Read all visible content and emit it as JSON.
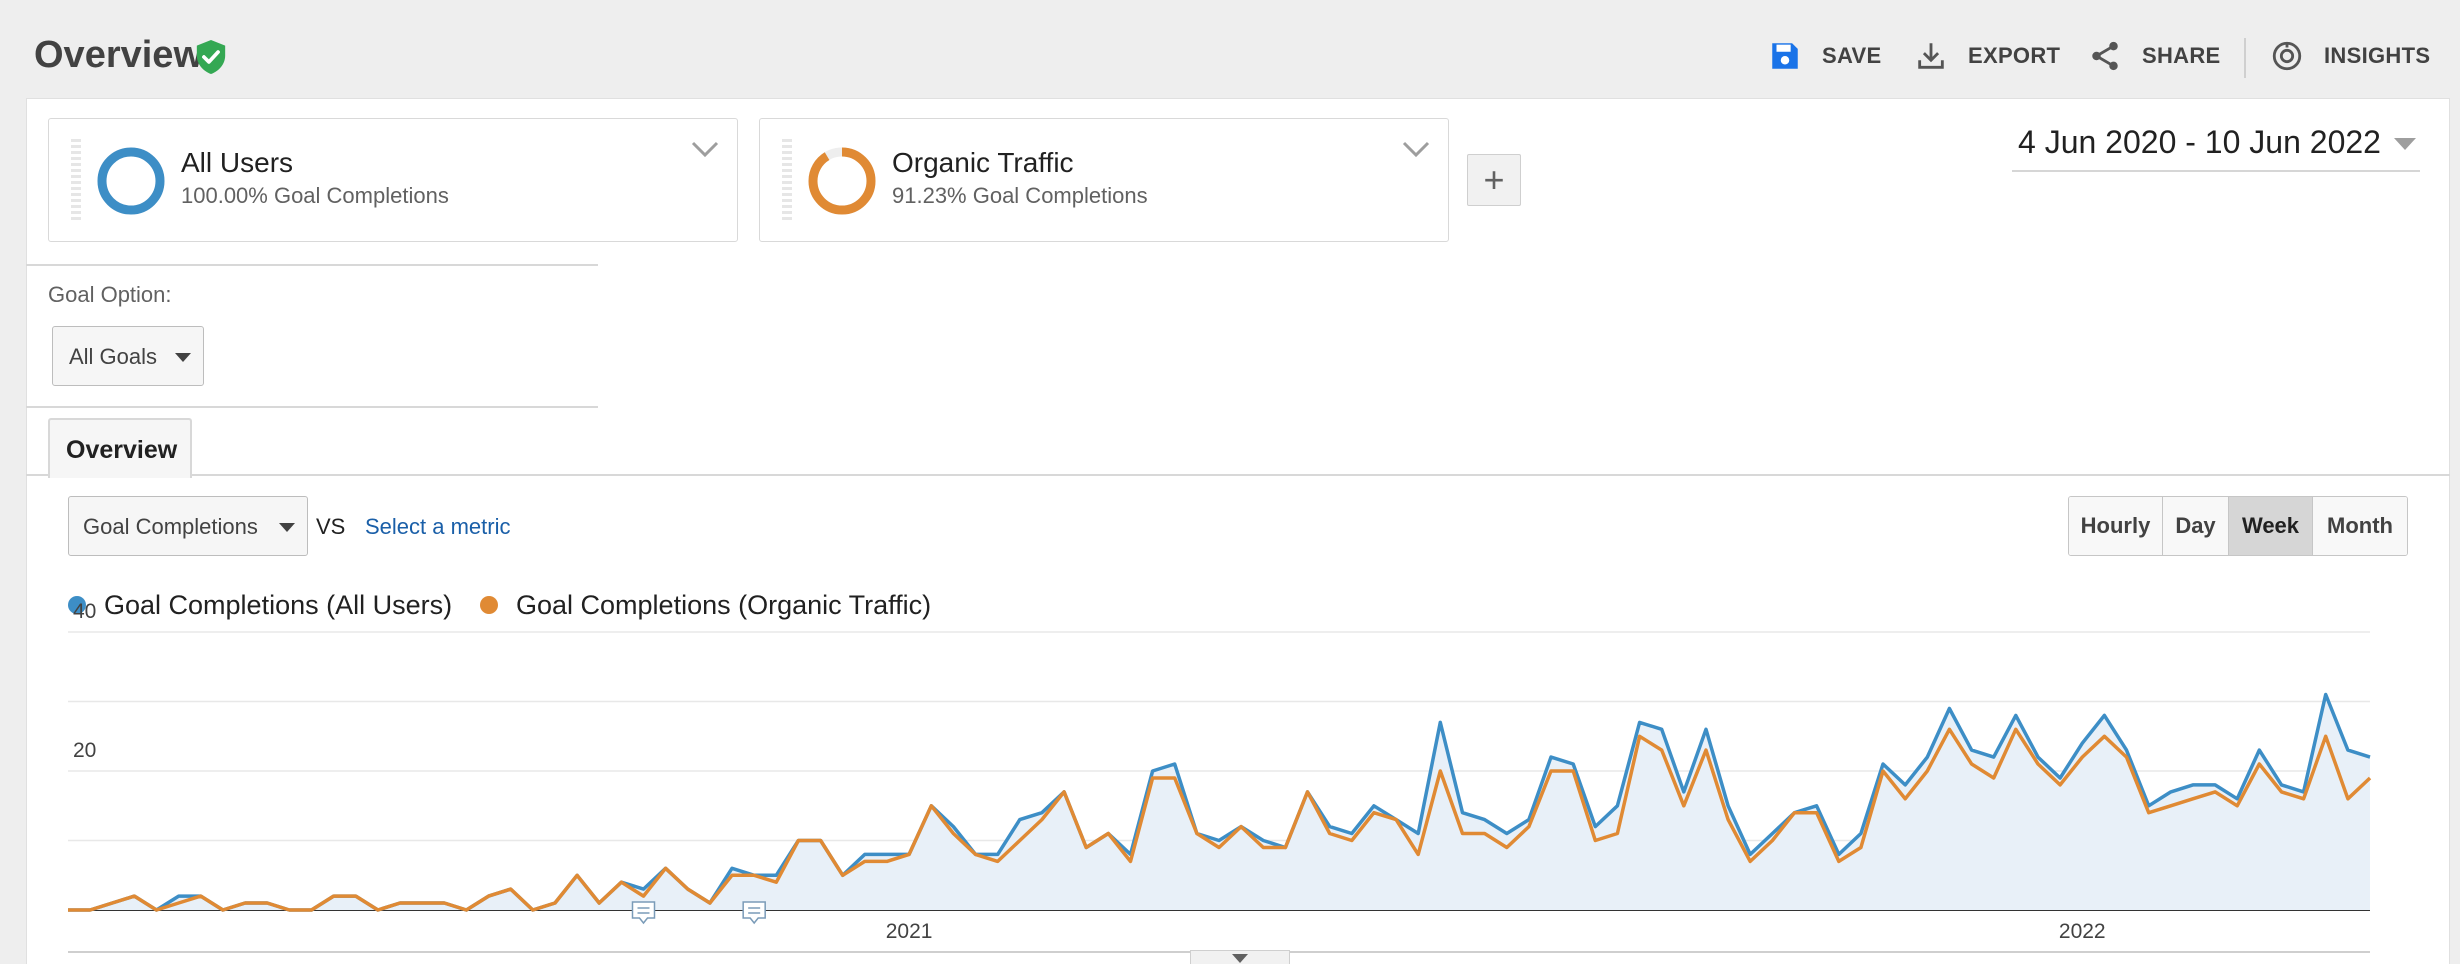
{
  "header": {
    "title": "Overview",
    "actions": {
      "save": "SAVE",
      "export": "EXPORT",
      "share": "SHARE",
      "insights": "INSIGHTS"
    }
  },
  "segments": [
    {
      "name": "All Users",
      "subtitle": "100.00% Goal Completions",
      "color": "#3d8ec6",
      "share": 1.0
    },
    {
      "name": "Organic Traffic",
      "subtitle": "91.23% Goal Completions",
      "color": "#e08a34",
      "share": 0.9123
    }
  ],
  "add_segment_label": "+",
  "date_range": "4 Jun 2020 - 10 Jun 2022",
  "goal_option": {
    "label": "Goal Option:",
    "value": "All Goals"
  },
  "tabs": [
    {
      "label": "Overview"
    }
  ],
  "metric_selector": {
    "value": "Goal Completions",
    "vs_label": "VS",
    "secondary_link": "Select a metric"
  },
  "granularity": {
    "options": [
      "Hourly",
      "Day",
      "Week",
      "Month"
    ],
    "active": "Week"
  },
  "colors": {
    "accent": "#1a5fa8",
    "verified": "#34a853",
    "series_all": "#3d8ec6",
    "series_organic": "#e08a34",
    "area_fill": "#e8f0f8"
  },
  "chart_data": {
    "type": "line",
    "x_unit": "week",
    "x_start": "2020-06-04",
    "x_ticks": [
      {
        "label": "2021",
        "week": 38
      },
      {
        "label": "2022",
        "week": 91
      }
    ],
    "y_ticks": [
      "40",
      "20"
    ],
    "ylim": [
      0,
      40
    ],
    "grid": true,
    "legend": "top-left",
    "annotation_weeks": [
      26,
      31
    ],
    "series": [
      {
        "name": "Goal Completions (All Users)",
        "color": "#3d8ec6",
        "values": [
          0,
          0,
          1,
          2,
          0,
          2,
          2,
          0,
          1,
          1,
          0,
          0,
          2,
          2,
          0,
          1,
          1,
          1,
          0,
          2,
          3,
          0,
          1,
          5,
          1,
          4,
          3,
          6,
          3,
          1,
          6,
          5,
          5,
          10,
          10,
          5,
          8,
          8,
          8,
          15,
          12,
          8,
          8,
          13,
          14,
          17,
          9,
          11,
          8,
          20,
          21,
          11,
          10,
          12,
          10,
          9,
          17,
          12,
          11,
          15,
          13,
          11,
          27,
          14,
          13,
          11,
          13,
          22,
          21,
          12,
          15,
          27,
          26,
          17,
          26,
          15,
          8,
          11,
          14,
          15,
          8,
          11,
          21,
          18,
          22,
          29,
          23,
          22,
          28,
          22,
          19,
          24,
          28,
          23,
          15,
          17,
          18,
          18,
          16,
          23,
          18,
          17,
          31,
          23,
          22
        ],
        "fill": true
      },
      {
        "name": "Goal Completions (Organic Traffic)",
        "color": "#e08a34",
        "values": [
          0,
          0,
          1,
          2,
          0,
          1,
          2,
          0,
          1,
          1,
          0,
          0,
          2,
          2,
          0,
          1,
          1,
          1,
          0,
          2,
          3,
          0,
          1,
          5,
          1,
          4,
          2,
          6,
          3,
          1,
          5,
          5,
          4,
          10,
          10,
          5,
          7,
          7,
          8,
          15,
          11,
          8,
          7,
          10,
          13,
          17,
          9,
          11,
          7,
          19,
          19,
          11,
          9,
          12,
          9,
          9,
          17,
          11,
          10,
          14,
          13,
          8,
          20,
          11,
          11,
          9,
          12,
          20,
          20,
          10,
          11,
          25,
          23,
          15,
          23,
          13,
          7,
          10,
          14,
          14,
          7,
          9,
          20,
          16,
          20,
          26,
          21,
          19,
          26,
          21,
          18,
          22,
          25,
          22,
          14,
          15,
          16,
          17,
          15,
          21,
          17,
          16,
          25,
          16,
          19
        ]
      }
    ]
  }
}
